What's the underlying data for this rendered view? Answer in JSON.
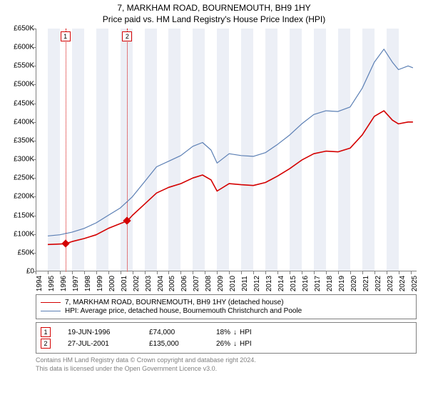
{
  "chart": {
    "title": "7, MARKHAM ROAD, BOURNEMOUTH, BH9 1HY",
    "subtitle": "Price paid vs. HM Land Registry's House Price Index (HPI)",
    "type": "line",
    "background_color": "#ffffff",
    "band_color": "#eceff6",
    "axis_color": "#808080",
    "tick_fontsize": 10,
    "title_fontsize": 12,
    "x": {
      "min": 1994,
      "max": 2025.5,
      "ticks": [
        1994,
        1995,
        1996,
        1997,
        1998,
        1999,
        2000,
        2001,
        2002,
        2003,
        2004,
        2005,
        2006,
        2007,
        2008,
        2009,
        2010,
        2011,
        2012,
        2013,
        2014,
        2015,
        2016,
        2017,
        2018,
        2019,
        2020,
        2021,
        2022,
        2023,
        2024,
        2025
      ]
    },
    "y": {
      "min": 0,
      "max": 650000,
      "tick_step": 50000,
      "tick_prefix": "£",
      "tick_suffix": "K",
      "tick_divisor": 1000
    },
    "series": [
      {
        "id": "price_paid",
        "label": "7, MARKHAM ROAD, BOURNEMOUTH, BH9 1HY (detached house)",
        "color": "#d40000",
        "line_width": 1.6,
        "points": [
          [
            1995.0,
            72000
          ],
          [
            1996.46,
            74000
          ],
          [
            1997.0,
            80000
          ],
          [
            1998.0,
            88000
          ],
          [
            1999.0,
            98000
          ],
          [
            2000.0,
            115000
          ],
          [
            2001.0,
            128000
          ],
          [
            2001.57,
            135000
          ],
          [
            2002.0,
            150000
          ],
          [
            2003.0,
            180000
          ],
          [
            2004.0,
            210000
          ],
          [
            2005.0,
            225000
          ],
          [
            2006.0,
            235000
          ],
          [
            2007.0,
            250000
          ],
          [
            2007.8,
            258000
          ],
          [
            2008.5,
            245000
          ],
          [
            2009.0,
            215000
          ],
          [
            2010.0,
            235000
          ],
          [
            2011.0,
            232000
          ],
          [
            2012.0,
            230000
          ],
          [
            2013.0,
            238000
          ],
          [
            2014.0,
            255000
          ],
          [
            2015.0,
            275000
          ],
          [
            2016.0,
            298000
          ],
          [
            2017.0,
            315000
          ],
          [
            2018.0,
            322000
          ],
          [
            2019.0,
            320000
          ],
          [
            2020.0,
            330000
          ],
          [
            2021.0,
            365000
          ],
          [
            2022.0,
            415000
          ],
          [
            2022.8,
            430000
          ],
          [
            2023.5,
            405000
          ],
          [
            2024.0,
            395000
          ],
          [
            2024.8,
            400000
          ],
          [
            2025.2,
            400000
          ]
        ]
      },
      {
        "id": "hpi",
        "label": "HPI: Average price, detached house, Bournemouth Christchurch and Poole",
        "color": "#5b7fb4",
        "line_width": 1.2,
        "points": [
          [
            1995.0,
            95000
          ],
          [
            1996.0,
            98000
          ],
          [
            1997.0,
            105000
          ],
          [
            1998.0,
            115000
          ],
          [
            1999.0,
            130000
          ],
          [
            2000.0,
            150000
          ],
          [
            2001.0,
            170000
          ],
          [
            2002.0,
            200000
          ],
          [
            2003.0,
            240000
          ],
          [
            2004.0,
            280000
          ],
          [
            2005.0,
            295000
          ],
          [
            2006.0,
            310000
          ],
          [
            2007.0,
            335000
          ],
          [
            2007.8,
            345000
          ],
          [
            2008.5,
            325000
          ],
          [
            2009.0,
            290000
          ],
          [
            2010.0,
            315000
          ],
          [
            2011.0,
            310000
          ],
          [
            2012.0,
            308000
          ],
          [
            2013.0,
            318000
          ],
          [
            2014.0,
            340000
          ],
          [
            2015.0,
            365000
          ],
          [
            2016.0,
            395000
          ],
          [
            2017.0,
            420000
          ],
          [
            2018.0,
            430000
          ],
          [
            2019.0,
            428000
          ],
          [
            2020.0,
            440000
          ],
          [
            2021.0,
            490000
          ],
          [
            2022.0,
            560000
          ],
          [
            2022.8,
            595000
          ],
          [
            2023.5,
            560000
          ],
          [
            2024.0,
            540000
          ],
          [
            2024.8,
            550000
          ],
          [
            2025.2,
            545000
          ]
        ]
      }
    ],
    "sale_markers": [
      {
        "n": "1",
        "x": 1996.46,
        "y": 74000,
        "color": "#d40000",
        "date": "19-JUN-1996",
        "price": "£74,000",
        "delta_pct": "18%",
        "delta_dir": "down",
        "delta_vs": "HPI"
      },
      {
        "n": "2",
        "x": 2001.57,
        "y": 135000,
        "color": "#d40000",
        "date": "27-JUL-2001",
        "price": "£135,000",
        "delta_pct": "26%",
        "delta_dir": "down",
        "delta_vs": "HPI"
      }
    ],
    "legend_border": "#808080"
  },
  "attribution": {
    "line1": "Contains HM Land Registry data © Crown copyright and database right 2024.",
    "line2": "This data is licensed under the Open Government Licence v3.0."
  }
}
